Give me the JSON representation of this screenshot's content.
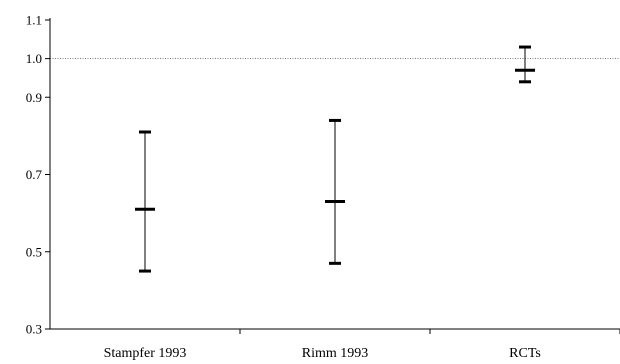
{
  "chart_data": {
    "type": "error-bar",
    "title": "",
    "xlabel": "",
    "ylabel": "",
    "ylim": [
      0.3,
      1.1
    ],
    "yticks": [
      "0.3",
      "0.5",
      "0.7",
      "0.9",
      "1.0",
      "1.1"
    ],
    "reference_line": 1.0,
    "grid": false,
    "categories": [
      "Stampfer 1993",
      "Rimm 1993",
      "RCTs"
    ],
    "estimates": [
      0.61,
      0.63,
      0.97
    ],
    "lower": [
      0.45,
      0.47,
      0.94
    ],
    "upper": [
      0.81,
      0.84,
      1.03
    ]
  }
}
